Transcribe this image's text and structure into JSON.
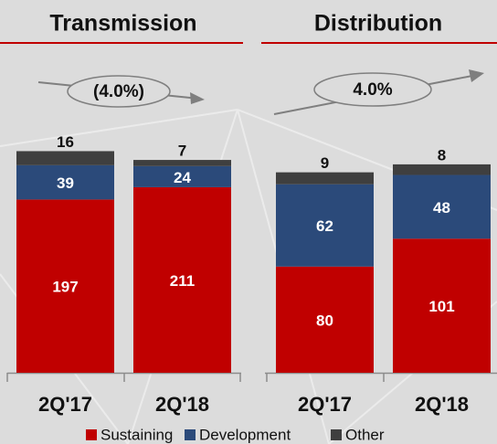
{
  "chart_data": {
    "type": "bar",
    "stacked": true,
    "panels": [
      {
        "title": "Transmission",
        "annotation": "(4.0%)",
        "categories": [
          "2Q'17",
          "2Q'18"
        ],
        "ylim": [
          0,
          320
        ]
      },
      {
        "title": "Distribution",
        "annotation": "4.0%",
        "categories": [
          "2Q'17",
          "2Q'18"
        ],
        "ylim": [
          0,
          212
        ]
      }
    ],
    "series": [
      {
        "name": "Sustaining",
        "color": "#c00000",
        "values": [
          197,
          211,
          80,
          101
        ]
      },
      {
        "name": "Development",
        "color": "#2b4a7a",
        "values": [
          39,
          24,
          62,
          48
        ]
      },
      {
        "name": "Other",
        "color": "#3f3f3f",
        "values": [
          16,
          7,
          9,
          8
        ]
      }
    ]
  }
}
